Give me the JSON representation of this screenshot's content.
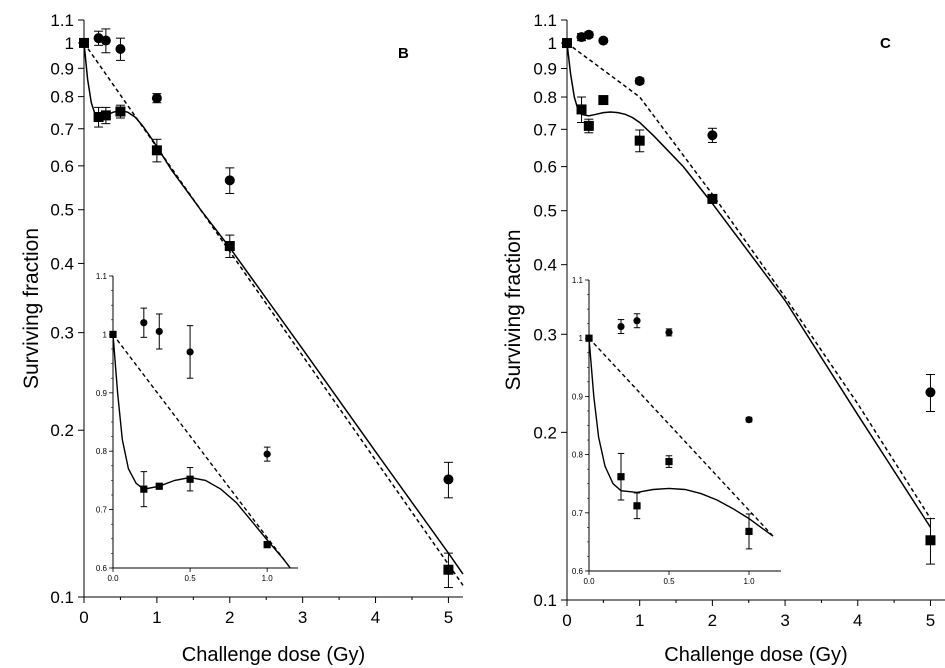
{
  "figure": {
    "panels": [
      "B",
      "C"
    ]
  },
  "chart_data": [
    {
      "type": "scatter",
      "panel_label": "B",
      "xlabel": "Challenge dose (Gy)",
      "ylabel": "Surviving fraction",
      "yscale": "log",
      "xlim": [
        0,
        5.2
      ],
      "ylim": [
        0.1,
        1.1
      ],
      "xticks": [
        0,
        1,
        2,
        3,
        4,
        5
      ],
      "yticks": [
        0.1,
        0.2,
        0.3,
        0.4,
        0.5,
        0.6,
        0.7,
        0.8,
        0.9,
        1,
        1.1
      ],
      "ytick_labels": [
        "0.1",
        "0.2",
        "0.3",
        "0.4",
        "0.5",
        "0.6",
        "0.7",
        "0.8",
        "0.9",
        "1",
        "1.1"
      ],
      "series": [
        {
          "marker": "circle",
          "points": [
            {
              "x": 0,
              "y": 1.0,
              "err": 0
            },
            {
              "x": 0.2,
              "y": 1.02,
              "err": 0.03
            },
            {
              "x": 0.3,
              "y": 1.01,
              "err": 0.05
            },
            {
              "x": 0.5,
              "y": 0.975,
              "err": 0.045
            },
            {
              "x": 1.0,
              "y": 0.795,
              "err": 0.015
            },
            {
              "x": 2.0,
              "y": 0.565,
              "err": 0.03
            },
            {
              "x": 5.0,
              "y": 0.163,
              "err": 0.012
            }
          ]
        },
        {
          "marker": "square",
          "points": [
            {
              "x": 0,
              "y": 1.0,
              "err": 0
            },
            {
              "x": 0.2,
              "y": 0.735,
              "err": 0.03
            },
            {
              "x": 0.3,
              "y": 0.74,
              "err": 0.025
            },
            {
              "x": 0.5,
              "y": 0.752,
              "err": 0.02
            },
            {
              "x": 1.0,
              "y": 0.64,
              "err": 0.03
            },
            {
              "x": 2.0,
              "y": 0.43,
              "err": 0.02
            },
            {
              "x": 5.0,
              "y": 0.112,
              "err": 0.008
            }
          ]
        }
      ],
      "lines": [
        {
          "style": "solid",
          "x": [
            0,
            0.05,
            0.1,
            0.15,
            0.2,
            0.3,
            0.4,
            0.5,
            0.6,
            0.7,
            0.8,
            0.9,
            1.0,
            1.2,
            1.6,
            2.0,
            3.0,
            4.0,
            5.0,
            5.2
          ],
          "y": [
            1.0,
            0.86,
            0.78,
            0.745,
            0.735,
            0.74,
            0.75,
            0.755,
            0.75,
            0.735,
            0.71,
            0.68,
            0.65,
            0.59,
            0.5,
            0.427,
            0.28,
            0.183,
            0.12,
            0.11
          ]
        },
        {
          "style": "dashed",
          "x": [
            0,
            5.2
          ],
          "y": [
            1.0,
            0.105
          ]
        }
      ],
      "inset": {
        "xlim": [
          0,
          1.2
        ],
        "ylim": [
          0.6,
          1.1
        ],
        "xticks": [
          0,
          0.5,
          1.0
        ],
        "xtick_labels": [
          "0.0",
          "0.5",
          "1.0"
        ],
        "yticks": [
          0.6,
          0.7,
          0.8,
          0.9,
          1.0,
          1.1
        ],
        "ytick_labels": [
          "0.6",
          "0.7",
          "0.8",
          "0.9",
          "1",
          "1.1"
        ],
        "series": [
          {
            "marker": "circle",
            "points": [
              {
                "x": 0.2,
                "y": 1.02,
                "err": 0.025
              },
              {
                "x": 0.3,
                "y": 1.005,
                "err": 0.03
              },
              {
                "x": 0.5,
                "y": 0.97,
                "err": 0.045
              },
              {
                "x": 1.0,
                "y": 0.795,
                "err": 0.012
              }
            ]
          },
          {
            "marker": "square",
            "points": [
              {
                "x": 0,
                "y": 1.0,
                "err": 0
              },
              {
                "x": 0.2,
                "y": 0.735,
                "err": 0.03
              },
              {
                "x": 0.3,
                "y": 0.74,
                "err": 0.004
              },
              {
                "x": 0.5,
                "y": 0.752,
                "err": 0.02
              },
              {
                "x": 1.0,
                "y": 0.64,
                "err": 0.005
              }
            ]
          }
        ],
        "lines": [
          {
            "style": "solid",
            "x": [
              0,
              0.03,
              0.06,
              0.1,
              0.15,
              0.2,
              0.3,
              0.4,
              0.5,
              0.6,
              0.7,
              0.8,
              0.9,
              1.0,
              1.1,
              1.15
            ],
            "y": [
              1.0,
              0.9,
              0.82,
              0.77,
              0.745,
              0.735,
              0.74,
              0.75,
              0.755,
              0.75,
              0.735,
              0.712,
              0.68,
              0.648,
              0.617,
              0.6
            ]
          },
          {
            "style": "dashed",
            "x": [
              0,
              1.15
            ],
            "y": [
              1.0,
              0.6
            ]
          }
        ]
      }
    },
    {
      "type": "scatter",
      "panel_label": "C",
      "xlabel": "Challenge dose (Gy)",
      "ylabel": "Surviving fraction",
      "yscale": "log",
      "xlim": [
        0,
        5.2
      ],
      "ylim": [
        0.1,
        1.1
      ],
      "xticks": [
        0,
        1,
        2,
        3,
        4,
        5
      ],
      "yticks": [
        0.1,
        0.2,
        0.3,
        0.4,
        0.5,
        0.6,
        0.7,
        0.8,
        0.9,
        1,
        1.1
      ],
      "ytick_labels": [
        "0.1",
        "0.2",
        "0.3",
        "0.4",
        "0.5",
        "0.6",
        "0.7",
        "0.8",
        "0.9",
        "1",
        "1.1"
      ],
      "series": [
        {
          "marker": "circle",
          "points": [
            {
              "x": 0,
              "y": 1.0,
              "err": 0
            },
            {
              "x": 0.2,
              "y": 1.025,
              "err": 0.015
            },
            {
              "x": 0.3,
              "y": 1.035,
              "err": 0.012
            },
            {
              "x": 0.5,
              "y": 1.01,
              "err": 0.008
            },
            {
              "x": 1.0,
              "y": 0.855,
              "err": 0.01
            },
            {
              "x": 2.0,
              "y": 0.683,
              "err": 0.02
            },
            {
              "x": 5.0,
              "y": 0.236,
              "err": 0.018
            }
          ]
        },
        {
          "marker": "square",
          "points": [
            {
              "x": 0,
              "y": 1.0,
              "err": 0
            },
            {
              "x": 0.2,
              "y": 0.76,
              "err": 0.04
            },
            {
              "x": 0.3,
              "y": 0.71,
              "err": 0.02
            },
            {
              "x": 0.5,
              "y": 0.79,
              "err": 0.008
            },
            {
              "x": 1.0,
              "y": 0.668,
              "err": 0.03
            },
            {
              "x": 2.0,
              "y": 0.525,
              "err": 0.008
            },
            {
              "x": 5.0,
              "y": 0.128,
              "err": 0.012
            }
          ]
        }
      ],
      "lines": [
        {
          "style": "solid",
          "x": [
            0,
            0.05,
            0.1,
            0.15,
            0.2,
            0.3,
            0.4,
            0.5,
            0.6,
            0.7,
            0.8,
            0.9,
            1.0,
            1.2,
            1.6,
            2.0,
            3.0,
            4.0,
            5.0
          ],
          "y": [
            1.0,
            0.88,
            0.8,
            0.76,
            0.745,
            0.74,
            0.745,
            0.75,
            0.752,
            0.75,
            0.745,
            0.735,
            0.72,
            0.68,
            0.6,
            0.515,
            0.345,
            0.215,
            0.135
          ]
        },
        {
          "style": "dashed",
          "x": [
            0,
            1.0,
            2.0,
            3.0,
            4.0,
            5.0
          ],
          "y": [
            1.0,
            0.8,
            0.535,
            0.35,
            0.225,
            0.14
          ]
        }
      ],
      "inset": {
        "xlim": [
          0,
          1.2
        ],
        "ylim": [
          0.6,
          1.1
        ],
        "xticks": [
          0,
          0.5,
          1.0
        ],
        "xtick_labels": [
          "0.0",
          "0.5",
          "1.0"
        ],
        "yticks": [
          0.6,
          0.7,
          0.8,
          0.9,
          1.0,
          1.1
        ],
        "ytick_labels": [
          "0.6",
          "0.7",
          "0.8",
          "0.9",
          "1",
          "1.1"
        ],
        "series": [
          {
            "marker": "circle",
            "points": [
              {
                "x": 0.2,
                "y": 1.02,
                "err": 0.012
              },
              {
                "x": 0.3,
                "y": 1.03,
                "err": 0.012
              },
              {
                "x": 0.5,
                "y": 1.01,
                "err": 0.006
              },
              {
                "x": 1.0,
                "y": 0.86,
                "err": 0.004
              }
            ]
          },
          {
            "marker": "square",
            "points": [
              {
                "x": 0,
                "y": 1.0,
                "err": 0
              },
              {
                "x": 0.2,
                "y": 0.762,
                "err": 0.04
              },
              {
                "x": 0.3,
                "y": 0.712,
                "err": 0.022
              },
              {
                "x": 0.5,
                "y": 0.788,
                "err": 0.01
              },
              {
                "x": 1.0,
                "y": 0.668,
                "err": 0.03
              }
            ]
          }
        ],
        "lines": [
          {
            "style": "solid",
            "x": [
              0,
              0.03,
              0.06,
              0.1,
              0.15,
              0.2,
              0.3,
              0.4,
              0.5,
              0.6,
              0.7,
              0.8,
              0.9,
              1.0,
              1.1,
              1.15
            ],
            "y": [
              1.0,
              0.9,
              0.83,
              0.78,
              0.75,
              0.738,
              0.735,
              0.74,
              0.742,
              0.74,
              0.733,
              0.722,
              0.707,
              0.69,
              0.67,
              0.66
            ]
          },
          {
            "style": "dashed",
            "x": [
              0,
              1.15
            ],
            "y": [
              1.0,
              0.66
            ]
          }
        ]
      }
    }
  ]
}
